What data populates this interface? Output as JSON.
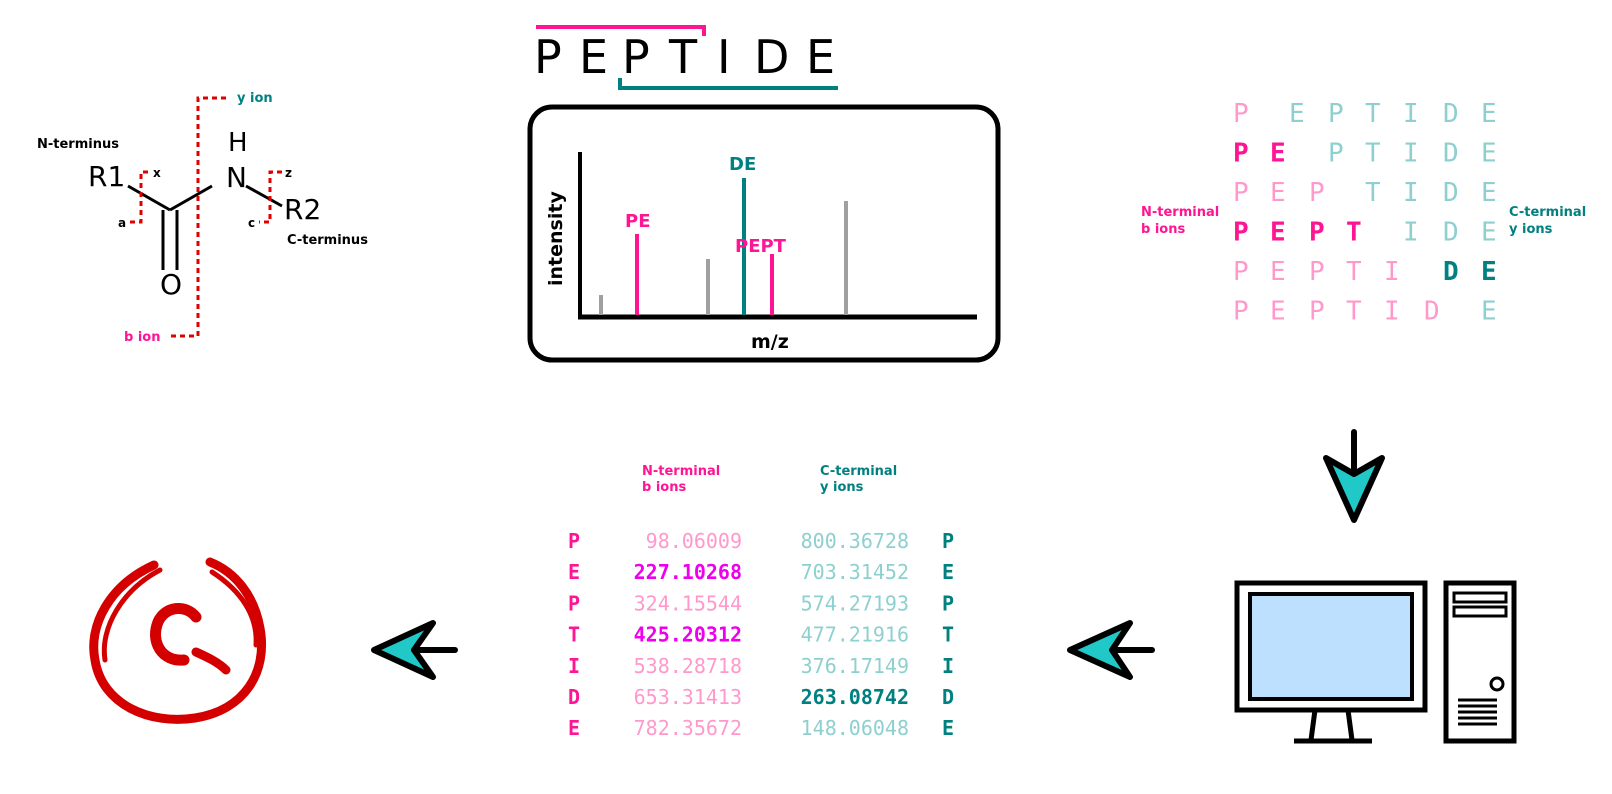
{
  "colors": {
    "magenta": "#ff1493",
    "teal": "#008080",
    "light_magenta": "#ff99cc",
    "light_teal": "#8ecfcf",
    "bright_magenta": "#ee00ee",
    "red": "#e00000",
    "dark_red": "#cc0000",
    "arrow_fill": "#20c8c8",
    "monitor_screen": "#bde0ff",
    "gray_peak": "#a0a0a0"
  },
  "structure": {
    "n_terminus": "N-terminus",
    "c_terminus": "C-terminus",
    "r1": "R1",
    "r2": "R2",
    "h": "H",
    "n": "N",
    "o": "O",
    "a": "a",
    "b_ion": "b ion",
    "c": "c",
    "x": "x",
    "y_ion": "y ion",
    "z": "z"
  },
  "peptide_title": [
    "P",
    "E",
    "P",
    "T",
    "I",
    "D",
    "E"
  ],
  "spectrum": {
    "ylabel": "intensity",
    "xlabel": "m/z",
    "peak_labels": {
      "pe": "PE",
      "de": "DE",
      "pept": "PEPT"
    }
  },
  "ladder": {
    "n_label_1": "N-terminal",
    "n_label_2": "b ions",
    "c_label_1": "C-terminal",
    "c_label_2": "y ions",
    "letters": [
      "P",
      "E",
      "P",
      "T",
      "I",
      "D",
      "E"
    ]
  },
  "table": {
    "n_header_1": "N-terminal",
    "n_header_2": "b ions",
    "c_header_1": "C-terminal",
    "c_header_2": "y ions",
    "rows": [
      {
        "left": "P",
        "b": "98.06009",
        "y": "800.36728",
        "right": "P"
      },
      {
        "left": "E",
        "b": "227.10268",
        "y": "703.31452",
        "right": "E"
      },
      {
        "left": "P",
        "b": "324.15544",
        "y": "574.27193",
        "right": "P"
      },
      {
        "left": "T",
        "b": "425.20312",
        "y": "477.21916",
        "right": "T"
      },
      {
        "left": "I",
        "b": "538.28718",
        "y": "376.17149",
        "right": "I"
      },
      {
        "left": "D",
        "b": "653.31413",
        "y": "263.08742",
        "right": "D"
      },
      {
        "left": "E",
        "b": "782.35672",
        "y": "148.06048",
        "right": "E"
      }
    ]
  },
  "icons": {
    "computer": "computer-icon",
    "arrow_down": "arrow-down-icon",
    "arrow_left": "arrow-left-icon",
    "result": "c-grade-icon"
  }
}
